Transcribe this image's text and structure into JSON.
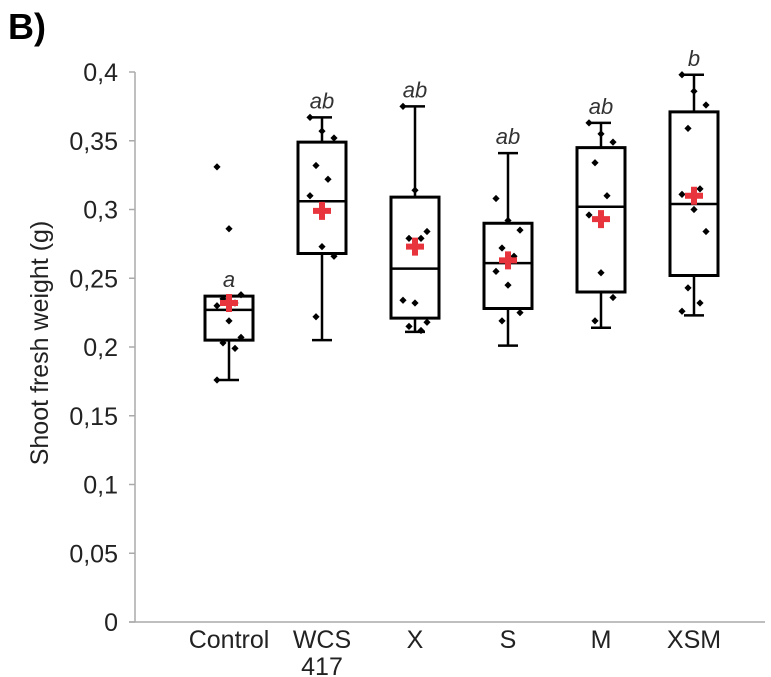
{
  "panel_label": "B)",
  "chart_data": {
    "type": "boxplot",
    "ylabel": "Shoot fresh weight (g)",
    "ylim": [
      0,
      0.4
    ],
    "yticks": [
      0,
      0.05,
      0.1,
      0.15,
      0.2,
      0.25,
      0.3,
      0.35,
      0.4
    ],
    "ytick_labels": [
      "0",
      "0,05",
      "0,1",
      "0,15",
      "0,2",
      "0,25",
      "0,3",
      "0,35",
      "0,4"
    ],
    "grid": false,
    "colors": {
      "box": "#000000",
      "points": "#000000",
      "mean": "#e8343c"
    },
    "groups": [
      {
        "category": [
          "Control"
        ],
        "letter": "a",
        "whisker_low": 0.176,
        "q1": 0.205,
        "median": 0.227,
        "q3": 0.237,
        "whisker_high": 0.237,
        "mean": 0.232,
        "points": [
          0.331,
          0.286,
          0.238,
          0.235,
          0.232,
          0.23,
          0.219,
          0.207,
          0.203,
          0.199,
          0.176
        ]
      },
      {
        "category": [
          "WCS",
          "417"
        ],
        "letter": "ab",
        "whisker_low": 0.205,
        "q1": 0.268,
        "median": 0.306,
        "q3": 0.349,
        "whisker_high": 0.367,
        "mean": 0.299,
        "points": [
          0.367,
          0.357,
          0.352,
          0.332,
          0.322,
          0.31,
          0.273,
          0.266,
          0.222
        ]
      },
      {
        "category": [
          "X"
        ],
        "letter": "ab",
        "whisker_low": 0.211,
        "q1": 0.221,
        "median": 0.257,
        "q3": 0.309,
        "whisker_high": 0.375,
        "mean": 0.273,
        "points": [
          0.375,
          0.314,
          0.284,
          0.279,
          0.279,
          0.234,
          0.232,
          0.218,
          0.215,
          0.212
        ]
      },
      {
        "category": [
          "S"
        ],
        "letter": "ab",
        "whisker_low": 0.201,
        "q1": 0.228,
        "median": 0.261,
        "q3": 0.29,
        "whisker_high": 0.341,
        "mean": 0.263,
        "points": [
          0.308,
          0.292,
          0.285,
          0.272,
          0.266,
          0.255,
          0.245,
          0.225,
          0.219
        ]
      },
      {
        "category": [
          "M"
        ],
        "letter": "ab",
        "whisker_low": 0.214,
        "q1": 0.24,
        "median": 0.302,
        "q3": 0.345,
        "whisker_high": 0.363,
        "mean": 0.293,
        "points": [
          0.363,
          0.355,
          0.349,
          0.334,
          0.31,
          0.296,
          0.254,
          0.236,
          0.219
        ]
      },
      {
        "category": [
          "XSM"
        ],
        "letter": "b",
        "whisker_low": 0.223,
        "q1": 0.252,
        "median": 0.304,
        "q3": 0.371,
        "whisker_high": 0.398,
        "mean": 0.31,
        "points": [
          0.398,
          0.386,
          0.376,
          0.359,
          0.315,
          0.311,
          0.3,
          0.284,
          0.243,
          0.232,
          0.226
        ]
      }
    ]
  }
}
